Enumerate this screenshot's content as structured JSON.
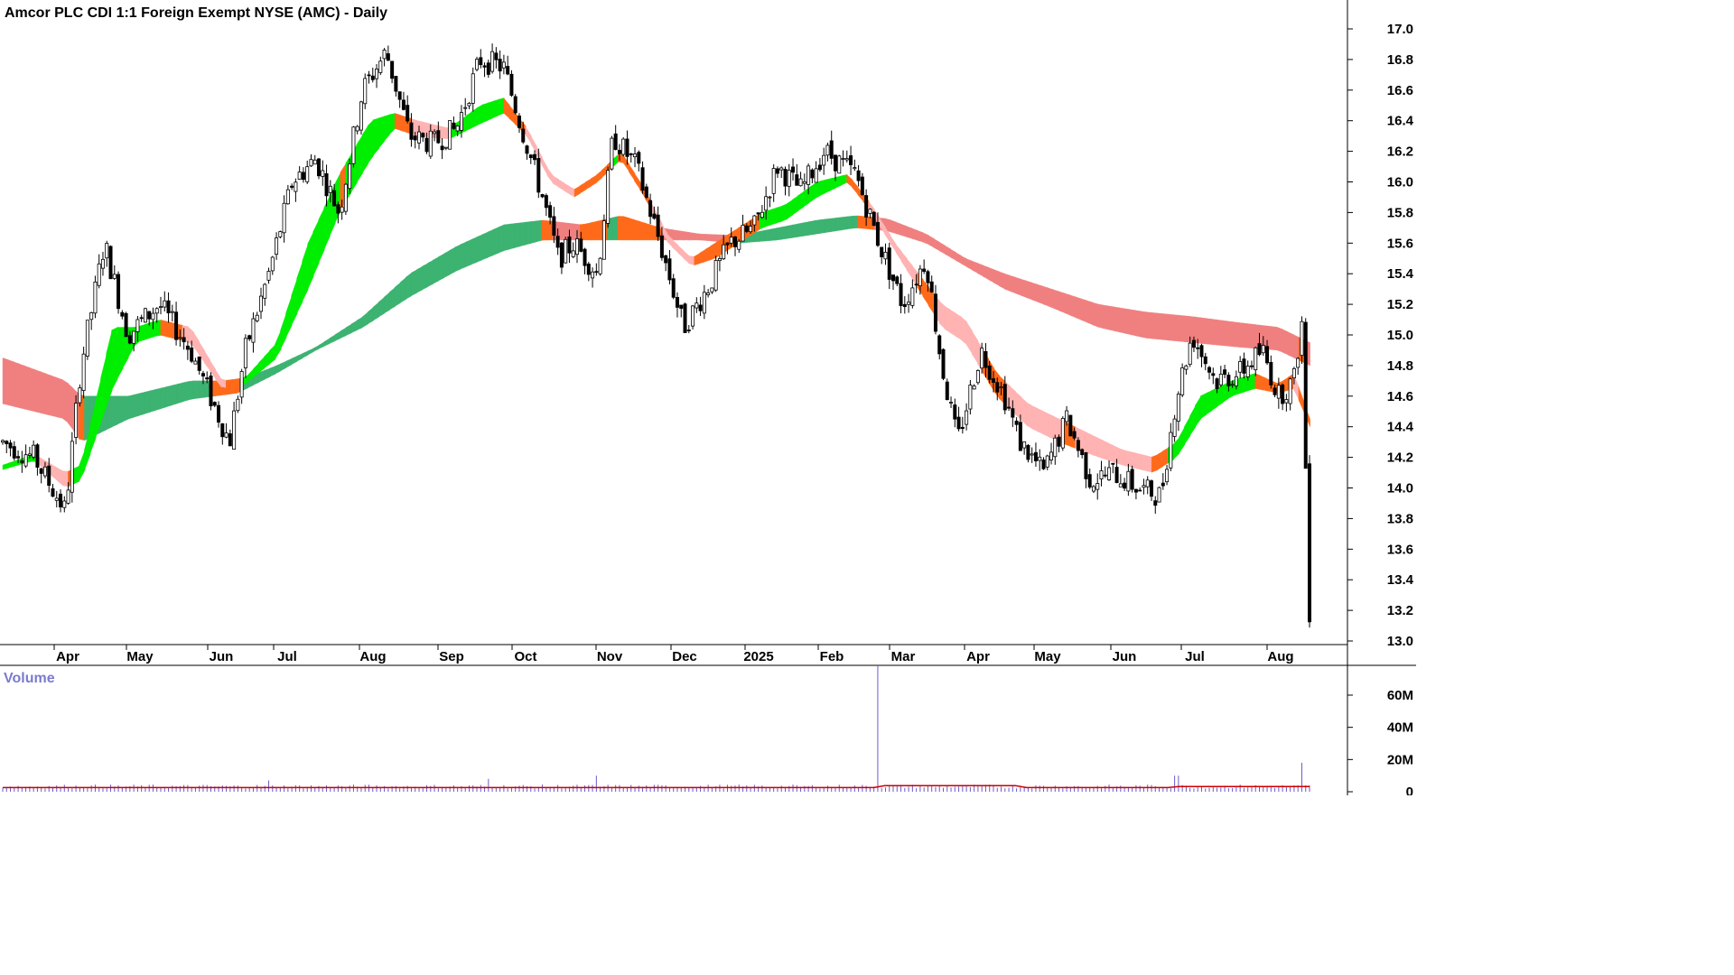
{
  "title": "Amcor PLC CDI 1:1 Foreign Exempt NYSE (AMC) - Daily",
  "volume_label": "Volume",
  "colors": {
    "bull_band": "#00ee00",
    "bear_band": "#ff6a1a",
    "bull_band_long": "#3cb371",
    "bear_band_long": "#f08080",
    "weak_bear": "#ffb3b3",
    "candle_up": "#ffffff",
    "candle_down": "#000000",
    "volume_bar": "#6a5acd",
    "volume_avg": "#cc0000"
  },
  "chart_data": {
    "type": "candlestick",
    "title": "Amcor PLC CDI 1:1 Foreign Exempt NYSE (AMC) - Daily",
    "y_axis": {
      "min": 13.0,
      "max": 17.0,
      "ticks": [
        "17.0",
        "16.8",
        "16.6",
        "16.4",
        "16.2",
        "16.0",
        "15.8",
        "15.6",
        "15.4",
        "15.2",
        "15.0",
        "14.8",
        "14.6",
        "14.4",
        "14.2",
        "14.0",
        "13.8",
        "13.6",
        "13.4",
        "13.2",
        "13.0"
      ]
    },
    "x_axis": {
      "labels": [
        "Apr",
        "May",
        "Jun",
        "Jul",
        "Aug",
        "Sep",
        "Oct",
        "Nov",
        "Dec",
        "2025",
        "Feb",
        "Mar",
        "Apr",
        "May",
        "Jun",
        "Jul",
        "Aug"
      ]
    },
    "volume_axis": {
      "ticks": [
        "60M",
        "40M",
        "20M",
        "0"
      ]
    },
    "price_path": [
      {
        "m": 0.0,
        "p": 14.3
      },
      {
        "m": 0.4,
        "p": 14.2
      },
      {
        "m": 0.8,
        "p": 13.85
      },
      {
        "m": 1.0,
        "p": 14.8
      },
      {
        "m": 1.3,
        "p": 15.6
      },
      {
        "m": 1.6,
        "p": 15.0
      },
      {
        "m": 2.0,
        "p": 15.2
      },
      {
        "m": 2.4,
        "p": 14.9
      },
      {
        "m": 2.9,
        "p": 14.3
      },
      {
        "m": 3.1,
        "p": 14.9
      },
      {
        "m": 3.4,
        "p": 15.4
      },
      {
        "m": 3.7,
        "p": 16.0
      },
      {
        "m": 4.0,
        "p": 16.15
      },
      {
        "m": 4.3,
        "p": 15.8
      },
      {
        "m": 4.6,
        "p": 16.6
      },
      {
        "m": 4.9,
        "p": 16.85
      },
      {
        "m": 5.2,
        "p": 16.3
      },
      {
        "m": 5.5,
        "p": 16.25
      },
      {
        "m": 5.8,
        "p": 16.35
      },
      {
        "m": 6.1,
        "p": 16.8
      },
      {
        "m": 6.4,
        "p": 16.75
      },
      {
        "m": 6.9,
        "p": 15.9
      },
      {
        "m": 7.1,
        "p": 15.5
      },
      {
        "m": 7.3,
        "p": 15.6
      },
      {
        "m": 7.6,
        "p": 15.4
      },
      {
        "m": 7.8,
        "p": 16.3
      },
      {
        "m": 8.1,
        "p": 16.1
      },
      {
        "m": 8.4,
        "p": 15.6
      },
      {
        "m": 8.7,
        "p": 15.05
      },
      {
        "m": 9.0,
        "p": 15.3
      },
      {
        "m": 9.3,
        "p": 15.6
      },
      {
        "m": 9.6,
        "p": 15.7
      },
      {
        "m": 9.9,
        "p": 16.1
      },
      {
        "m": 10.2,
        "p": 15.95
      },
      {
        "m": 10.5,
        "p": 16.2
      },
      {
        "m": 10.9,
        "p": 16.05
      },
      {
        "m": 11.2,
        "p": 15.6
      },
      {
        "m": 11.5,
        "p": 15.2
      },
      {
        "m": 11.8,
        "p": 15.5
      },
      {
        "m": 12.0,
        "p": 14.8
      },
      {
        "m": 12.2,
        "p": 14.3
      },
      {
        "m": 12.5,
        "p": 14.9
      },
      {
        "m": 12.8,
        "p": 14.6
      },
      {
        "m": 13.0,
        "p": 14.3
      },
      {
        "m": 13.3,
        "p": 14.1
      },
      {
        "m": 13.6,
        "p": 14.45
      },
      {
        "m": 13.9,
        "p": 14.05
      },
      {
        "m": 14.2,
        "p": 14.1
      },
      {
        "m": 14.5,
        "p": 14.0
      },
      {
        "m": 14.8,
        "p": 13.95
      },
      {
        "m": 15.0,
        "p": 14.6
      },
      {
        "m": 15.2,
        "p": 15.0
      },
      {
        "m": 15.5,
        "p": 14.7
      },
      {
        "m": 15.8,
        "p": 14.75
      },
      {
        "m": 16.1,
        "p": 14.9
      },
      {
        "m": 16.3,
        "p": 14.6
      },
      {
        "m": 16.5,
        "p": 14.7
      },
      {
        "m": 16.6,
        "p": 15.1
      },
      {
        "m": 16.7,
        "p": 13.2
      }
    ],
    "ribbons": {
      "short": [
        {
          "m": 0.0,
          "a": 14.12,
          "b": 14.15
        },
        {
          "m": 0.4,
          "a": 14.18,
          "b": 14.22
        },
        {
          "m": 0.8,
          "a": 14.0,
          "b": 14.1
        },
        {
          "m": 1.0,
          "a": 14.05,
          "b": 14.15
        },
        {
          "m": 1.4,
          "a": 14.65,
          "b": 15.05
        },
        {
          "m": 1.7,
          "a": 14.95,
          "b": 15.05
        },
        {
          "m": 2.0,
          "a": 15.0,
          "b": 15.1
        },
        {
          "m": 2.4,
          "a": 14.95,
          "b": 15.05
        },
        {
          "m": 2.8,
          "a": 14.65,
          "b": 14.7
        },
        {
          "m": 3.1,
          "a": 14.68,
          "b": 14.72
        },
        {
          "m": 3.5,
          "a": 14.85,
          "b": 14.95
        },
        {
          "m": 3.9,
          "a": 15.3,
          "b": 15.6
        },
        {
          "m": 4.3,
          "a": 15.8,
          "b": 16.05
        },
        {
          "m": 4.7,
          "a": 16.15,
          "b": 16.4
        },
        {
          "m": 5.0,
          "a": 16.35,
          "b": 16.45
        },
        {
          "m": 5.3,
          "a": 16.3,
          "b": 16.4
        },
        {
          "m": 5.7,
          "a": 16.28,
          "b": 16.35
        },
        {
          "m": 6.1,
          "a": 16.38,
          "b": 16.5
        },
        {
          "m": 6.4,
          "a": 16.45,
          "b": 16.55
        },
        {
          "m": 6.7,
          "a": 16.3,
          "b": 16.35
        },
        {
          "m": 7.0,
          "a": 16.0,
          "b": 16.05
        },
        {
          "m": 7.3,
          "a": 15.9,
          "b": 15.95
        },
        {
          "m": 7.6,
          "a": 16.0,
          "b": 16.05
        },
        {
          "m": 7.9,
          "a": 16.15,
          "b": 16.2
        },
        {
          "m": 8.2,
          "a": 15.9,
          "b": 15.95
        },
        {
          "m": 8.5,
          "a": 15.6,
          "b": 15.65
        },
        {
          "m": 8.8,
          "a": 15.45,
          "b": 15.5
        },
        {
          "m": 9.1,
          "a": 15.5,
          "b": 15.6
        },
        {
          "m": 9.4,
          "a": 15.6,
          "b": 15.7
        },
        {
          "m": 9.7,
          "a": 15.7,
          "b": 15.8
        },
        {
          "m": 10.0,
          "a": 15.75,
          "b": 15.85
        },
        {
          "m": 10.4,
          "a": 15.9,
          "b": 16.0
        },
        {
          "m": 10.8,
          "a": 16.0,
          "b": 16.05
        },
        {
          "m": 11.1,
          "a": 15.8,
          "b": 15.85
        },
        {
          "m": 11.4,
          "a": 15.55,
          "b": 15.6
        },
        {
          "m": 11.7,
          "a": 15.3,
          "b": 15.4
        },
        {
          "m": 12.0,
          "a": 15.05,
          "b": 15.2
        },
        {
          "m": 12.3,
          "a": 14.95,
          "b": 15.1
        },
        {
          "m": 12.7,
          "a": 14.6,
          "b": 14.75
        },
        {
          "m": 13.1,
          "a": 14.4,
          "b": 14.55
        },
        {
          "m": 13.5,
          "a": 14.3,
          "b": 14.45
        },
        {
          "m": 13.9,
          "a": 14.22,
          "b": 14.35
        },
        {
          "m": 14.3,
          "a": 14.15,
          "b": 14.25
        },
        {
          "m": 14.7,
          "a": 14.1,
          "b": 14.2
        },
        {
          "m": 15.0,
          "a": 14.2,
          "b": 14.3
        },
        {
          "m": 15.3,
          "a": 14.45,
          "b": 14.6
        },
        {
          "m": 15.7,
          "a": 14.6,
          "b": 14.7
        },
        {
          "m": 16.0,
          "a": 14.65,
          "b": 14.75
        },
        {
          "m": 16.3,
          "a": 14.62,
          "b": 14.68
        },
        {
          "m": 16.5,
          "a": 14.65,
          "b": 14.75
        },
        {
          "m": 16.7,
          "a": 14.4,
          "b": 14.45
        }
      ],
      "long": [
        {
          "m": 0.0,
          "a": 14.55,
          "b": 14.85
        },
        {
          "m": 0.8,
          "a": 14.45,
          "b": 14.7
        },
        {
          "m": 1.0,
          "a": 14.3,
          "b": 14.6
        },
        {
          "m": 1.6,
          "a": 14.45,
          "b": 14.6
        },
        {
          "m": 2.4,
          "a": 14.58,
          "b": 14.7
        },
        {
          "m": 3.0,
          "a": 14.62,
          "b": 14.7
        },
        {
          "m": 3.5,
          "a": 14.75,
          "b": 14.8
        },
        {
          "m": 4.0,
          "a": 14.9,
          "b": 14.92
        },
        {
          "m": 4.6,
          "a": 15.05,
          "b": 15.12
        },
        {
          "m": 5.2,
          "a": 15.25,
          "b": 15.4
        },
        {
          "m": 5.8,
          "a": 15.42,
          "b": 15.58
        },
        {
          "m": 6.4,
          "a": 15.55,
          "b": 15.72
        },
        {
          "m": 6.9,
          "a": 15.62,
          "b": 15.75
        },
        {
          "m": 7.4,
          "a": 15.62,
          "b": 15.72
        },
        {
          "m": 7.9,
          "a": 15.62,
          "b": 15.78
        },
        {
          "m": 8.4,
          "a": 15.62,
          "b": 15.7
        },
        {
          "m": 8.9,
          "a": 15.62,
          "b": 15.66
        },
        {
          "m": 9.4,
          "a": 15.6,
          "b": 15.65
        },
        {
          "m": 9.9,
          "a": 15.62,
          "b": 15.7
        },
        {
          "m": 10.4,
          "a": 15.66,
          "b": 15.75
        },
        {
          "m": 10.9,
          "a": 15.7,
          "b": 15.78
        },
        {
          "m": 11.3,
          "a": 15.68,
          "b": 15.76
        },
        {
          "m": 11.8,
          "a": 15.6,
          "b": 15.66
        },
        {
          "m": 12.3,
          "a": 15.45,
          "b": 15.5
        },
        {
          "m": 12.8,
          "a": 15.3,
          "b": 15.4
        },
        {
          "m": 13.4,
          "a": 15.18,
          "b": 15.3
        },
        {
          "m": 14.0,
          "a": 15.05,
          "b": 15.2
        },
        {
          "m": 14.6,
          "a": 14.98,
          "b": 15.15
        },
        {
          "m": 15.2,
          "a": 14.95,
          "b": 15.12
        },
        {
          "m": 15.8,
          "a": 14.92,
          "b": 15.08
        },
        {
          "m": 16.3,
          "a": 14.9,
          "b": 15.05
        },
        {
          "m": 16.7,
          "a": 14.8,
          "b": 14.95
        }
      ]
    },
    "volume_spikes": [
      {
        "m": 11.2,
        "v": 78
      },
      {
        "m": 16.6,
        "v": 18
      },
      {
        "m": 7.6,
        "v": 10
      },
      {
        "m": 6.2,
        "v": 8
      },
      {
        "m": 3.4,
        "v": 7
      },
      {
        "m": 15.0,
        "v": 10
      }
    ]
  }
}
